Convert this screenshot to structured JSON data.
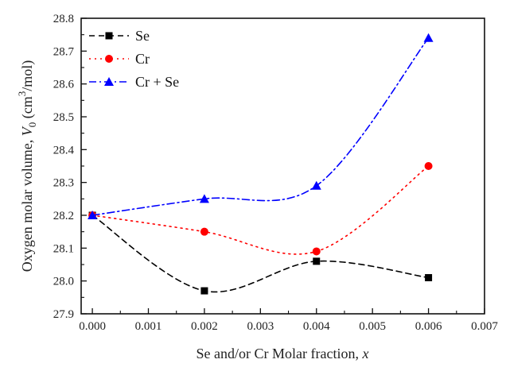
{
  "chart_data": {
    "type": "line",
    "title": "",
    "xlabel": "Se and/or Cr Molar fraction, x",
    "xlabel_parts": {
      "text": "Se and/or Cr Molar fraction, ",
      "var": "x"
    },
    "ylabel": "Oxygen molar volume, V0 (cm3/mol)",
    "ylabel_parts": {
      "text": "Oxygen molar volume, ",
      "var": "V",
      "sub": "0",
      "unit_open": " (cm",
      "sup": "3",
      "unit_close": "/mol)"
    },
    "xlim": [
      -0.0002,
      0.007
    ],
    "ylim": [
      27.9,
      28.8
    ],
    "xticks": [
      "0.000",
      "0.001",
      "0.002",
      "0.003",
      "0.004",
      "0.005",
      "0.006",
      "0.007"
    ],
    "xtick_values": [
      0,
      0.001,
      0.002,
      0.003,
      0.004,
      0.005,
      0.006,
      0.007
    ],
    "yticks": [
      "27.9",
      "28.0",
      "28.1",
      "28.2",
      "28.3",
      "28.4",
      "28.5",
      "28.6",
      "28.7",
      "28.8"
    ],
    "ytick_values": [
      27.9,
      28.0,
      28.1,
      28.2,
      28.3,
      28.4,
      28.5,
      28.6,
      28.7,
      28.8
    ],
    "grid": false,
    "legend_position": "top-left",
    "x": [
      0,
      0.002,
      0.004,
      0.006
    ],
    "series": [
      {
        "name": "Se",
        "values": [
          28.2,
          27.97,
          28.06,
          28.01
        ],
        "color": "#000000",
        "marker": "square",
        "line": "dashed"
      },
      {
        "name": "Cr",
        "values": [
          28.2,
          28.15,
          28.09,
          28.35
        ],
        "color": "#ff0000",
        "marker": "circle",
        "line": "dotted"
      },
      {
        "name": "Cr + Se",
        "values": [
          28.2,
          28.25,
          28.29,
          28.74
        ],
        "color": "#0000ff",
        "marker": "triangle",
        "line": "dash-dot"
      }
    ]
  }
}
